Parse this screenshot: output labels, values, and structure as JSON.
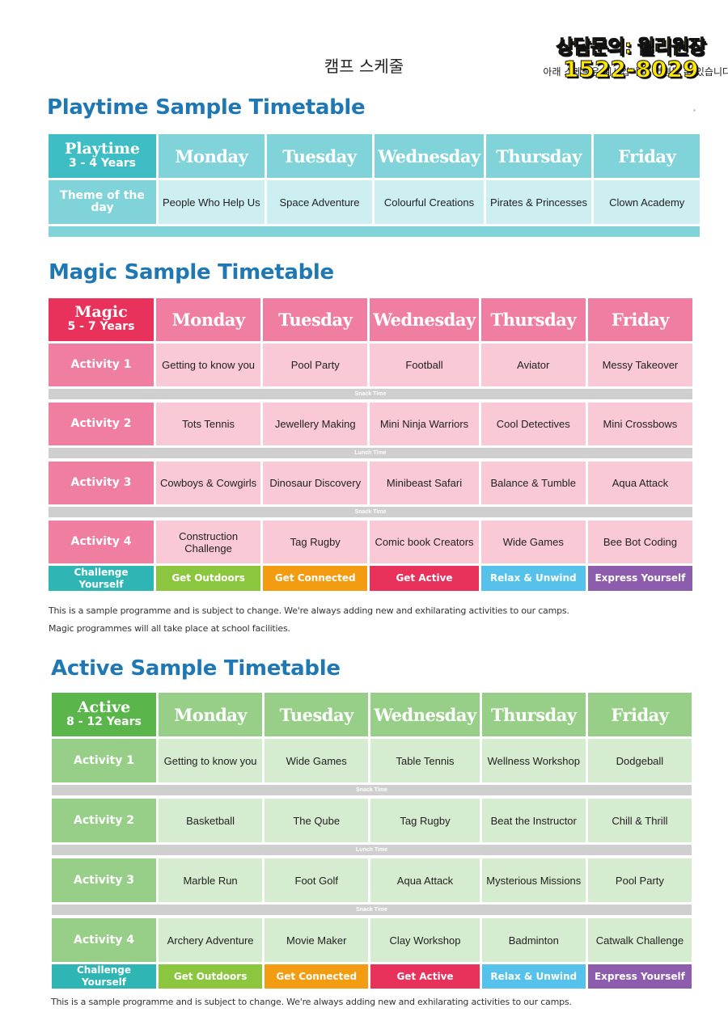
{
  "page_title": "캠프 스케줄",
  "contact": {
    "label": "상담문의: 윌리원장",
    "phone": "1522-8029",
    "note": "아래 스케줄은 예시입니다. 변경될 수 있습니다"
  },
  "days": [
    "Monday",
    "Tuesday",
    "Wednesday",
    "Thursday",
    "Friday"
  ],
  "playtime": {
    "title": "Playtime Sample Timetable",
    "corner_name": "Playtime",
    "corner_age": "3 - 4 Years",
    "theme_label": "Theme of the day",
    "themes": [
      "People Who Help Us",
      "Space Adventure",
      "Colourful Creations",
      "Pirates & Princesses",
      "Clown Academy"
    ]
  },
  "magic": {
    "title": "Magic Sample Timetable",
    "corner_name": "Magic",
    "corner_age": "5 - 7 Years",
    "activities": [
      {
        "label": "Activity 1",
        "items": [
          "Getting to know you",
          "Pool Party",
          "Football",
          "Aviator",
          "Messy Takeover"
        ]
      },
      {
        "label": "Activity 2",
        "items": [
          "Tots Tennis",
          "Jewellery Making",
          "Mini Ninja Warriors",
          "Cool Detectives",
          "Mini Crossbows"
        ]
      },
      {
        "label": "Activity 3",
        "items": [
          "Cowboys & Cowgirls",
          "Dinosaur Discovery",
          "Minibeast Safari",
          "Balance & Tumble",
          "Aqua Attack"
        ]
      },
      {
        "label": "Activity 4",
        "items": [
          "Construction Challenge",
          "Tag Rugby",
          "Comic book Creators",
          "Wide Games",
          "Bee Bot Coding"
        ]
      }
    ],
    "breaks": [
      "Snack Time",
      "Lunch Time",
      "Snack Time"
    ],
    "notes": [
      "This is a sample programme and is subject to change. We're always adding new and exhilarating activities to our camps.",
      "Magic programmes will all take place at school facilities."
    ]
  },
  "active": {
    "title": "Active Sample Timetable",
    "corner_name": "Active",
    "corner_age": "8 - 12 Years",
    "activities": [
      {
        "label": "Activity 1",
        "items": [
          "Getting to know you",
          "Wide Games",
          "Table Tennis",
          "Wellness Workshop",
          "Dodgeball"
        ]
      },
      {
        "label": "Activity 2",
        "items": [
          "Basketball",
          "The Qube",
          "Tag Rugby",
          "Beat the Instructor",
          "Chill & Thrill"
        ]
      },
      {
        "label": "Activity 3",
        "items": [
          "Marble Run",
          "Foot Golf",
          "Aqua Attack",
          "Mysterious Missions",
          "Pool Party"
        ]
      },
      {
        "label": "Activity 4",
        "items": [
          "Archery Adventure",
          "Movie Maker",
          "Clay Workshop",
          "Badminton",
          "Catwalk Challenge"
        ]
      }
    ],
    "breaks": [
      "Snack Time",
      "Lunch Time",
      "Snack Time"
    ],
    "notes": [
      "This is a sample programme and is subject to change. We're always adding new and exhilarating activities to our camps."
    ]
  },
  "categories": [
    {
      "label": "Challenge Yourself",
      "color": "#2fb5b3"
    },
    {
      "label": "Get Outdoors",
      "color": "#8cc63f"
    },
    {
      "label": "Get Connected",
      "color": "#f39c12"
    },
    {
      "label": "Get Active",
      "color": "#e8315b"
    },
    {
      "label": "Relax & Unwind",
      "color": "#56c1ea"
    },
    {
      "label": "Express Yourself",
      "color": "#8e5cad"
    }
  ],
  "colors": {
    "playtime_dark": "#3fbdc4",
    "playtime_mid": "#7fd3d9",
    "playtime_light": "#cdeff1",
    "magic_dark": "#e8315b",
    "magic_mid": "#f07ea0",
    "magic_light": "#f9c9d6",
    "active_dark": "#5ab54a",
    "active_mid": "#97cf88",
    "active_light": "#d6ecd0",
    "strip": "#cfcfcf",
    "title_blue": "#1f78b4"
  }
}
